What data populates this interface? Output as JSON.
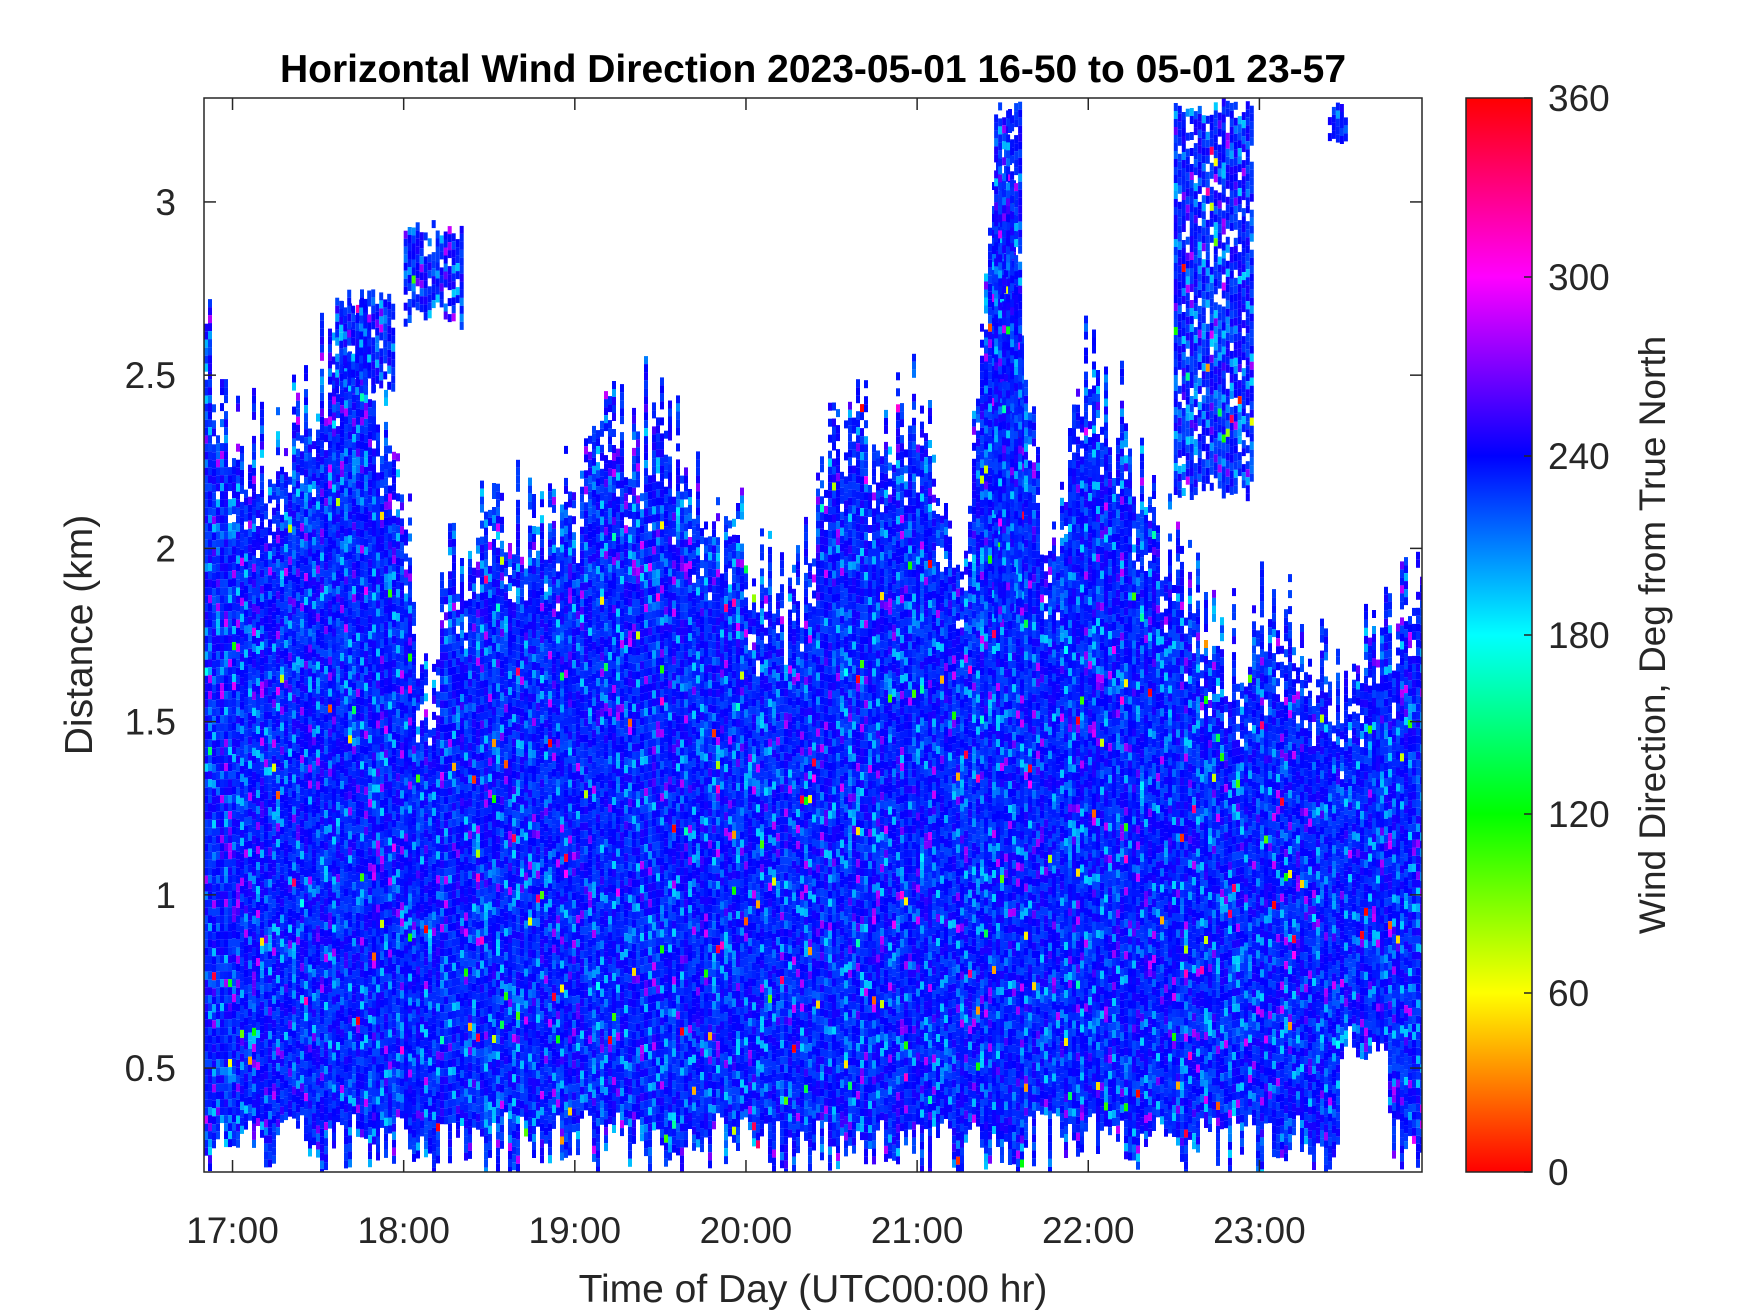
{
  "chart_data": {
    "type": "heatmap",
    "title": "Horizontal Wind Direction 2023-05-01 16-50 to 05-01 23-57",
    "xlabel": "Time of Day (UTC00:00 hr)",
    "ylabel": "Distance (km)",
    "colorbar_label": "Wind Direction, Deg from True North",
    "x_ticks": [
      "17:00",
      "18:00",
      "19:00",
      "20:00",
      "21:00",
      "22:00",
      "23:00"
    ],
    "x_tick_hours": [
      17,
      18,
      19,
      20,
      21,
      22,
      23
    ],
    "xlim_hours": [
      16.8333,
      23.95
    ],
    "y_ticks": [
      "0.5",
      "1",
      "1.5",
      "2",
      "2.5",
      "3"
    ],
    "y_tick_values": [
      0.5,
      1,
      1.5,
      2,
      2.5,
      3
    ],
    "ylim": [
      0.2,
      3.3
    ],
    "colorbar_ticks": [
      "0",
      "60",
      "120",
      "180",
      "240",
      "300",
      "360"
    ],
    "colorbar_tick_values": [
      0,
      60,
      120,
      180,
      240,
      300,
      360
    ],
    "clim": [
      0,
      360
    ],
    "colormap": [
      "#ff0000",
      "#ffff00",
      "#00ff00",
      "#00ffff",
      "#0000ff",
      "#ff00ff",
      "#ff0000"
    ],
    "dominant_direction_deg": 235,
    "grid": false,
    "echo_top_km": {
      "hours": [
        16.83,
        17.0,
        17.25,
        17.5,
        17.75,
        18.0,
        18.1,
        18.3,
        18.5,
        18.75,
        19.0,
        19.25,
        19.5,
        19.75,
        20.0,
        20.25,
        20.5,
        20.75,
        21.0,
        21.25,
        21.5,
        21.75,
        22.0,
        22.25,
        22.5,
        22.75,
        23.0,
        23.25,
        23.5,
        23.75,
        23.95
      ],
      "values": [
        2.6,
        2.3,
        2.3,
        2.5,
        2.65,
        2.2,
        1.6,
        2.0,
        2.05,
        2.1,
        2.15,
        2.35,
        2.4,
        2.2,
        2.0,
        1.8,
        2.3,
        2.35,
        2.4,
        1.85,
        3.3,
        1.85,
        2.6,
        2.3,
        2.0,
        1.7,
        1.8,
        1.8,
        1.6,
        1.75,
        2.0
      ]
    },
    "elevated_layers": [
      {
        "hours": [
          17.6,
          17.95
        ],
        "km": [
          2.45,
          2.75
        ]
      },
      {
        "hours": [
          18.0,
          18.35
        ],
        "km": [
          2.65,
          2.95
        ]
      },
      {
        "hours": [
          21.45,
          21.6
        ],
        "km": [
          1.8,
          3.3
        ]
      },
      {
        "hours": [
          22.5,
          22.95
        ],
        "km": [
          2.15,
          3.3
        ]
      },
      {
        "hours": [
          23.4,
          23.5
        ],
        "km": [
          3.15,
          3.3
        ]
      }
    ],
    "low_gap_hours": [
      [
        23.45,
        23.75
      ]
    ]
  }
}
